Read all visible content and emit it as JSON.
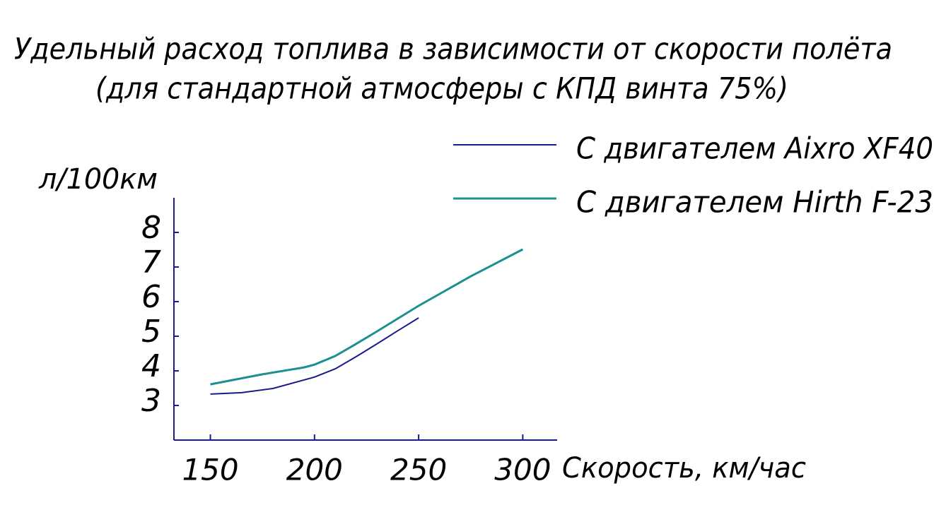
{
  "chart_data": {
    "type": "line",
    "title": "Удельный расход топлива в зависимости от скорости полёта",
    "subtitle": "(для стандартной атмосферы с КПД винта 75%)",
    "ylabel": "л/100км",
    "xlabel": "Скорость, км/час",
    "axis_color": "#1a1a8c",
    "xlim": [
      132.5,
      316.5
    ],
    "xticks": [
      150,
      200,
      250,
      300
    ],
    "ylim": [
      2,
      9
    ],
    "yticks": [
      3,
      4,
      5,
      6,
      7,
      8
    ],
    "series": [
      {
        "name": "С двигателем Aixro XF40",
        "color": "#1a1a8c",
        "x": [
          150,
          165,
          180,
          200,
          210,
          220,
          230,
          240,
          250
        ],
        "values": [
          3.33,
          3.37,
          3.49,
          3.82,
          4.06,
          4.41,
          4.78,
          5.16,
          5.53
        ]
      },
      {
        "name": "С двигателем Hirth F-23",
        "color": "#1a9090",
        "x": [
          150,
          175,
          195,
          200,
          210,
          220,
          230,
          250,
          275,
          300
        ],
        "values": [
          3.61,
          3.9,
          4.1,
          4.18,
          4.43,
          4.78,
          5.14,
          5.88,
          6.73,
          7.51
        ]
      }
    ]
  }
}
